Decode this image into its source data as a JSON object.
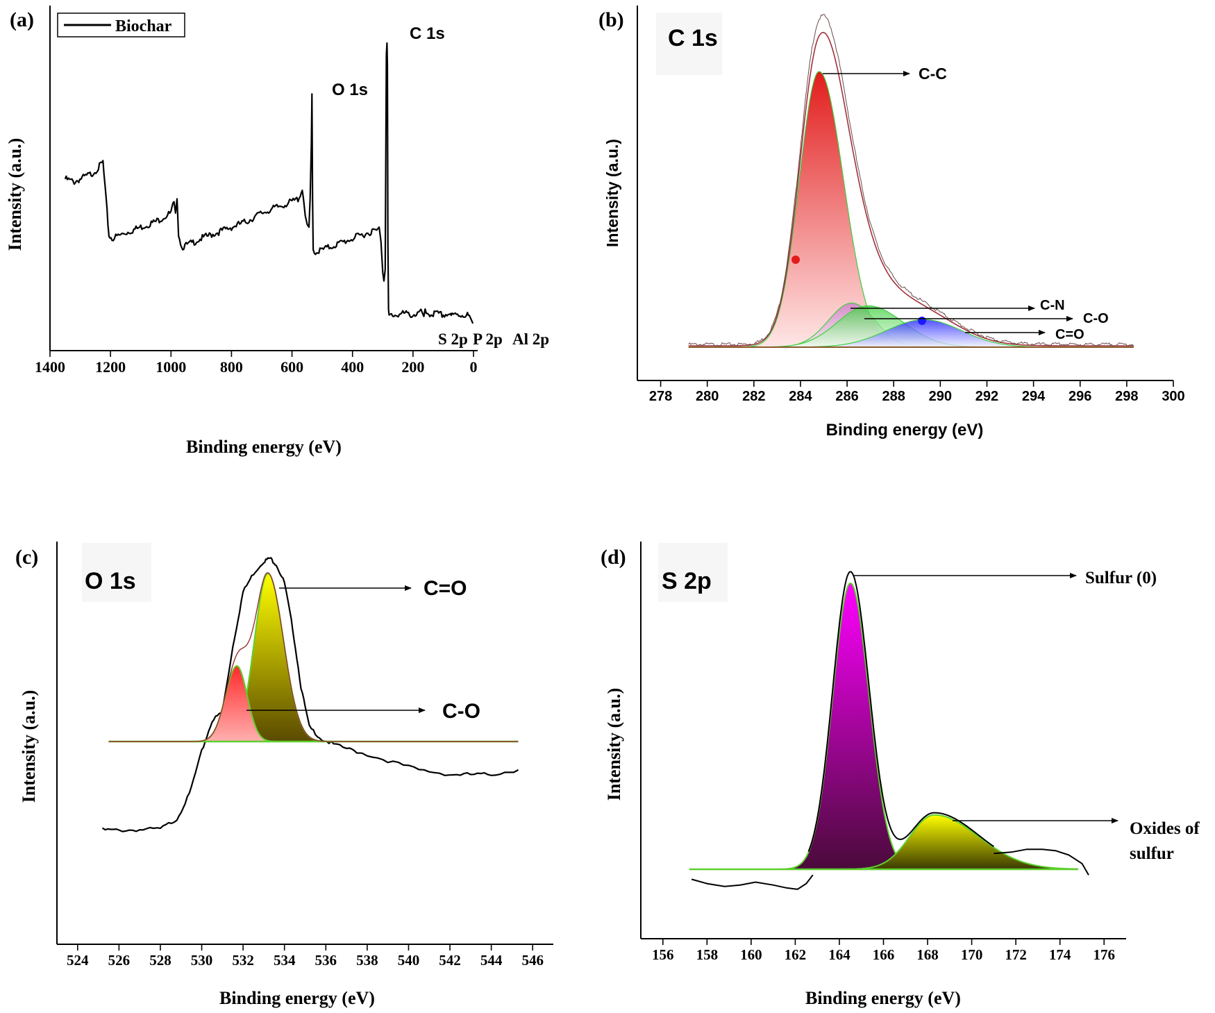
{
  "chart_data": [
    {
      "panel": "(a)",
      "type": "line",
      "title": "",
      "xlabel": "Binding energy (eV)",
      "ylabel": "Intensity (a.u.)",
      "xlim": [
        1400,
        0
      ],
      "xticks": [
        1400,
        1200,
        1000,
        800,
        600,
        400,
        200,
        0
      ],
      "legend": "Biochar",
      "legend_position": "top-left",
      "series": [
        {
          "name": "Biochar",
          "color": "#000000",
          "x": [
            1350,
            1320,
            1290,
            1260,
            1240,
            1225,
            1215,
            1205,
            1195,
            1150,
            1100,
            1050,
            1000,
            990,
            985,
            980,
            975,
            965,
            950,
            900,
            850,
            800,
            750,
            700,
            650,
            600,
            580,
            566,
            562,
            556,
            550,
            544,
            540,
            536,
            534,
            532,
            530,
            526,
            515,
            500,
            450,
            400,
            350,
            320,
            312,
            306,
            300,
            296,
            292,
            290,
            288,
            286,
            284.5,
            283,
            281,
            279,
            275,
            260,
            230,
            200,
            170,
            164,
            160,
            140,
            133,
            130,
            100,
            75,
            74,
            60,
            30,
            20,
            10,
            2
          ],
          "y": [
            0.52,
            0.51,
            0.525,
            0.54,
            0.56,
            0.58,
            0.45,
            0.32,
            0.31,
            0.33,
            0.35,
            0.37,
            0.4,
            0.44,
            0.4,
            0.45,
            0.33,
            0.28,
            0.285,
            0.31,
            0.33,
            0.35,
            0.37,
            0.4,
            0.42,
            0.44,
            0.45,
            0.48,
            0.45,
            0.39,
            0.36,
            0.35,
            0.45,
            0.65,
            0.82,
            0.45,
            0.27,
            0.26,
            0.265,
            0.27,
            0.29,
            0.31,
            0.33,
            0.34,
            0.35,
            0.3,
            0.19,
            0.16,
            0.2,
            0.55,
            0.96,
            1.0,
            0.92,
            0.3,
            0.06,
            0.04,
            0.04,
            0.04,
            0.045,
            0.04,
            0.05,
            0.035,
            0.05,
            0.04,
            0.035,
            0.045,
            0.04,
            0.045,
            0.035,
            0.04,
            0.04,
            0.04,
            0.03,
            0.01
          ]
        }
      ],
      "annotations": [
        "O 1s",
        "C 1s",
        "S 2p",
        "P 2p",
        "Al 2p"
      ]
    },
    {
      "panel": "(b)",
      "type": "area",
      "title": "C 1s",
      "xlabel": "Binding energy (eV)",
      "ylabel": "Intensity (a.u.)",
      "xlim": [
        277,
        300
      ],
      "xticks": [
        278,
        280,
        282,
        284,
        286,
        288,
        290,
        292,
        294,
        296,
        298,
        300
      ],
      "baseline_range": [
        279.2,
        298.3
      ],
      "components": [
        {
          "name": "C-C",
          "center": 284.8,
          "sigma_left": 0.85,
          "sigma_right": 1.05,
          "height": 1.0,
          "color_top": "#e21c1c",
          "color_bottom": "#ffe6e6"
        },
        {
          "name": "C-N",
          "center": 286.2,
          "sigma_left": 1.0,
          "sigma_right": 1.0,
          "height": 0.16,
          "color_top": "#c878c8",
          "color_bottom": "#f4eef4"
        },
        {
          "name": "C-O",
          "center": 286.9,
          "sigma_left": 1.3,
          "sigma_right": 1.5,
          "height": 0.15,
          "color_top": "#3ecf3e",
          "color_bottom": "#eefaee"
        },
        {
          "name": "C=O",
          "center": 289.3,
          "sigma_left": 1.6,
          "sigma_right": 1.6,
          "height": 0.1,
          "color_top": "#1a1aff",
          "color_bottom": "#eef0ff"
        }
      ],
      "annotations": [
        "C-C",
        "C-N",
        "C-O",
        "C=O"
      ]
    },
    {
      "panel": "(c)",
      "type": "area",
      "title": "O 1s",
      "xlabel": "Binding energy (eV)",
      "ylabel": "Intensity (a.u.)",
      "xlim": [
        523,
        547
      ],
      "xticks": [
        524,
        526,
        528,
        530,
        532,
        534,
        536,
        538,
        540,
        542,
        544,
        546
      ],
      "baseline_range": [
        525.5,
        545.3
      ],
      "components": [
        {
          "name": "C-O",
          "center": 531.7,
          "sigma_left": 0.55,
          "sigma_right": 0.5,
          "height": 0.45,
          "color_top": "#ff2a2a",
          "color_bottom": "#ffb0b0"
        },
        {
          "name": "C=O",
          "center": 533.2,
          "sigma_left": 0.65,
          "sigma_right": 0.75,
          "height": 1.0,
          "color_top": "#ffff00",
          "color_bottom": "#5a4a00"
        }
      ],
      "raw_spectrum": {
        "x": [
          525.2,
          526,
          527,
          528,
          528.8,
          529.4,
          530,
          530.5,
          531,
          531.5,
          532,
          532.5,
          533,
          533.3,
          533.6,
          534,
          534.4,
          534.8,
          535.2,
          535.8,
          536.5,
          537.5,
          539,
          540.5,
          542,
          543,
          544,
          545.3
        ],
        "y": [
          0.165,
          0.163,
          0.165,
          0.168,
          0.2,
          0.28,
          0.42,
          0.52,
          0.55,
          0.76,
          0.94,
          1.0,
          1.04,
          1.05,
          1.03,
          0.97,
          0.82,
          0.63,
          0.5,
          0.46,
          0.44,
          0.42,
          0.39,
          0.36,
          0.345,
          0.345,
          0.345,
          0.36
        ]
      },
      "annotations": [
        "C=O",
        "C-O"
      ]
    },
    {
      "panel": "(d)",
      "type": "area",
      "title": "S 2p",
      "xlabel": "Binding energy (eV)",
      "ylabel": "Intensity (a.u.)",
      "xlim": [
        155,
        177
      ],
      "xticks": [
        156,
        158,
        160,
        162,
        164,
        166,
        168,
        170,
        172,
        174,
        176
      ],
      "baseline_range": [
        157.2,
        174.8
      ],
      "components": [
        {
          "name": "Sulfur (0)",
          "center": 164.5,
          "sigma_left": 0.8,
          "sigma_right": 0.85,
          "height": 1.0,
          "color_top": "#ff00ff",
          "color_bottom": "#4a0a3a"
        },
        {
          "name": "Oxides of sulfur",
          "center": 168.3,
          "sigma_left": 1.1,
          "sigma_right": 2.0,
          "height": 0.19,
          "color_top": "#ffff00",
          "color_bottom": "#3a3a00"
        }
      ],
      "annotations": [
        "Sulfur (0)",
        "Oxides of sulfur"
      ]
    }
  ],
  "labels": {
    "panel_a": "(a)",
    "panel_b": "(b)",
    "panel_c": "(c)",
    "panel_d": "(d)",
    "a_legend": "Biochar",
    "a_o1s": "O 1s",
    "a_c1s": "C 1s",
    "a_s2p": "S 2p",
    "a_p2p": "P 2p",
    "a_al2p": "Al 2p",
    "b_title": "C 1s",
    "b_cc": "C-C",
    "b_cn": "C-N",
    "b_co": "C-O",
    "b_cdo": "C=O",
    "c_title": "O 1s",
    "c_cdo": "C=O",
    "c_co": "C-O",
    "d_title": "S 2p",
    "d_s0": "Sulfur (0)",
    "d_ox1": "Oxides of",
    "d_ox2": "sulfur",
    "xlabel": "Binding energy (eV)",
    "ylabel": "Intensity (a.u.)"
  }
}
